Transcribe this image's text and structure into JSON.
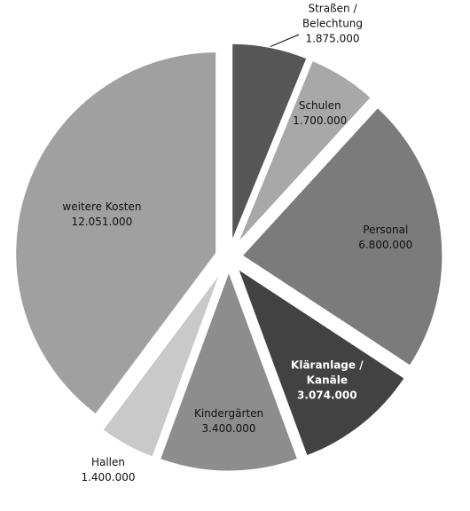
{
  "chart_data": {
    "type": "pie",
    "categories": [
      "Straßen / Belechtung",
      "Schulen",
      "Personal",
      "Kläranlage / Kanäle",
      "Kindergärten",
      "Hallen",
      "weitere Kosten"
    ],
    "values": [
      1875000,
      1700000,
      6800000,
      3074000,
      3400000,
      1400000,
      12051000
    ],
    "value_labels": [
      "1.875.000",
      "1.700.000",
      "6.800.000",
      "3.074.000",
      "3.400.000",
      "1.400.000",
      "12.051.000"
    ],
    "colors": [
      "#565656",
      "#a8a8a8",
      "#7b7b7b",
      "#424242",
      "#8d8d8d",
      "#c9c9c9",
      "#a0a0a0"
    ]
  }
}
